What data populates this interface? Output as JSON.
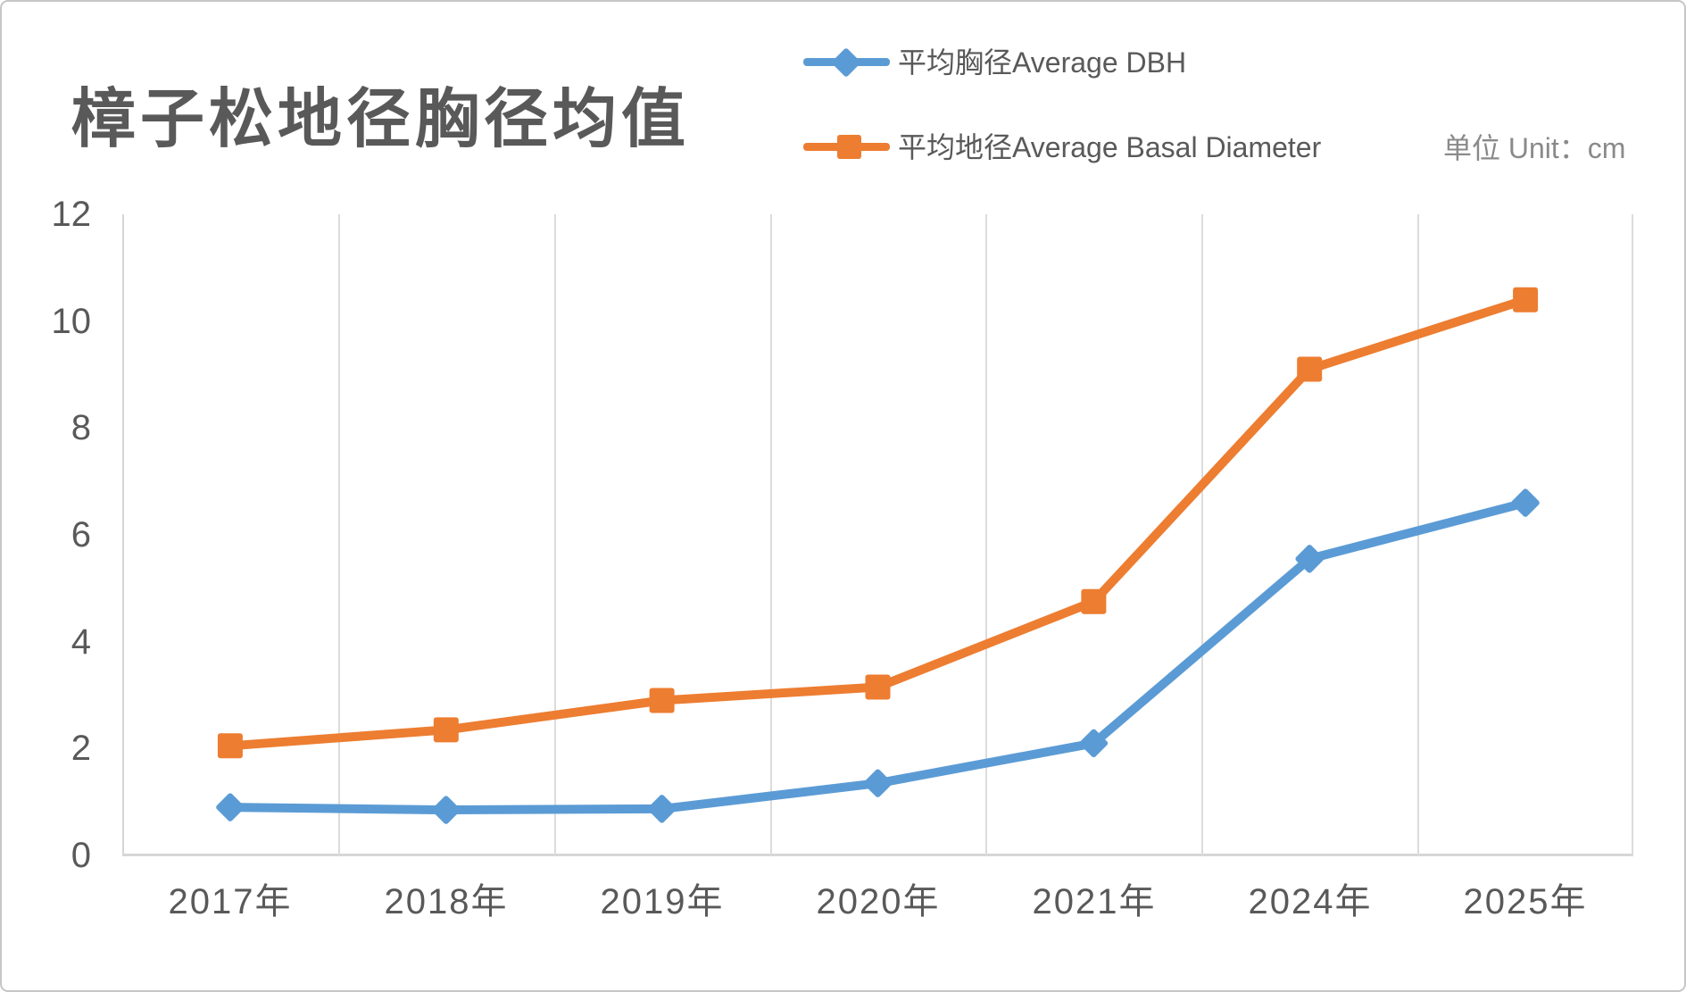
{
  "title": "樟子松地径胸径均值",
  "unit_label": "单位 Unit：cm",
  "chart_data": {
    "type": "line",
    "categories": [
      "2017年",
      "2018年",
      "2019年",
      "2020年",
      "2021年",
      "2024年",
      "2025年"
    ],
    "series": [
      {
        "name": "平均胸径Average DBH",
        "color": "#5B9BD5",
        "marker": "diamond",
        "values": [
          0.9,
          0.85,
          0.87,
          1.35,
          2.1,
          5.55,
          6.6
        ]
      },
      {
        "name": "平均地径Average Basal Diameter",
        "color": "#ED7D31",
        "marker": "square",
        "values": [
          2.05,
          2.35,
          2.9,
          3.15,
          4.75,
          9.1,
          10.4
        ]
      }
    ],
    "ylabel": "",
    "xlabel": "",
    "ylim": [
      0,
      12
    ],
    "yticks": [
      0,
      2,
      4,
      6,
      8,
      10,
      12
    ],
    "grid": "vertical-only",
    "legend_position": "top-right"
  }
}
